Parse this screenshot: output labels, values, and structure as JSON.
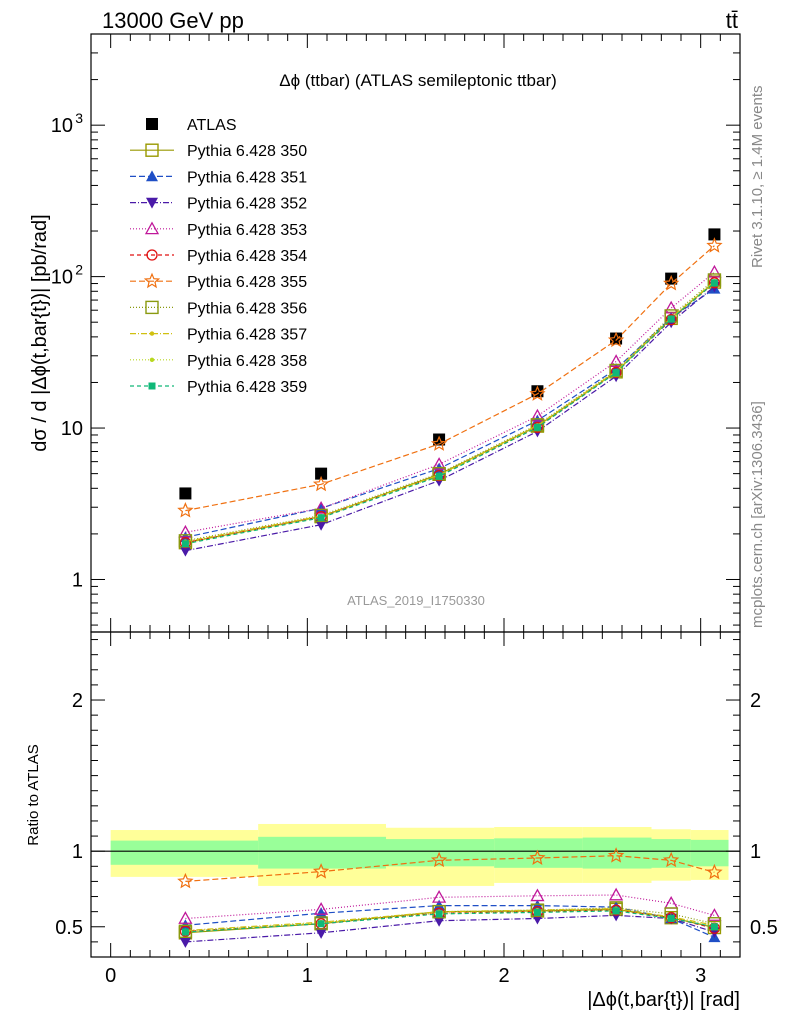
{
  "header": {
    "beam": "13000 GeV pp",
    "process": "tt̄"
  },
  "side_labels": {
    "rivet": "Rivet 3.1.10, ≥ 1.4M events",
    "mcplots": "mcplots.cern.ch [arXiv:1306.3436]"
  },
  "chart_data": [
    {
      "type": "scatter",
      "panel": "main",
      "title": "Δϕ (ttbar) (ATLAS semileptonic ttbar)",
      "ylabel": "dσ / d |Δϕ(t,bar{t})| [pb/rad]",
      "yscale": "log",
      "ylim": [
        0.45,
        4000
      ],
      "xlim": [
        -0.1,
        3.2
      ],
      "y_tick_labels": [
        "1",
        "10",
        "10²",
        "10³"
      ],
      "watermark": "ATLAS_2019_I1750330",
      "legend_position": "top-left",
      "x": [
        0.38,
        1.07,
        1.67,
        2.17,
        2.57,
        2.85,
        3.07
      ],
      "series": [
        {
          "name": "ATLAS",
          "color": "#000000",
          "marker": "square-filled",
          "dash": "none",
          "values": [
            3.7,
            5.0,
            8.4,
            17.5,
            39,
            97,
            190
          ]
        },
        {
          "name": "Pythia 6.428 350",
          "color": "#999900",
          "marker": "square-open",
          "dash": "solid",
          "values": [
            1.75,
            2.6,
            4.95,
            10.3,
            23.5,
            53,
            92
          ]
        },
        {
          "name": "Pythia 6.428 351",
          "color": "#1f4fc6",
          "marker": "triangle-up-filled",
          "dash": "6,3",
          "values": [
            1.9,
            2.95,
            5.4,
            11.2,
            24.5,
            53.5,
            83
          ]
        },
        {
          "name": "Pythia 6.428 352",
          "color": "#4a1aa8",
          "marker": "triangle-down-filled",
          "dash": "6,2,1,2",
          "values": [
            1.55,
            2.3,
            4.5,
            9.5,
            22,
            50,
            86
          ]
        },
        {
          "name": "Pythia 6.428 353",
          "color": "#c0189a",
          "marker": "triangle-up-open",
          "dash": "1,2",
          "values": [
            2.05,
            2.95,
            5.75,
            12.0,
            27.5,
            62,
            107
          ]
        },
        {
          "name": "Pythia 6.428 354",
          "color": "#e01010",
          "marker": "circle-open",
          "dash": "4,3",
          "values": [
            1.75,
            2.6,
            4.85,
            10.1,
            23.3,
            52,
            91
          ]
        },
        {
          "name": "Pythia 6.428 355",
          "color": "#f07010",
          "marker": "star-open",
          "dash": "6,3",
          "values": [
            2.85,
            4.25,
            7.85,
            16.8,
            38,
            90,
            160
          ]
        },
        {
          "name": "Pythia 6.428 356",
          "color": "#8a9a10",
          "marker": "square-open",
          "dash": "1,2",
          "values": [
            1.8,
            2.65,
            5.0,
            10.5,
            24,
            55,
            95
          ]
        },
        {
          "name": "Pythia 6.428 357",
          "color": "#d0c010",
          "marker": "dot",
          "dash": "6,2,1,2",
          "values": [
            1.78,
            2.62,
            4.9,
            10.4,
            23.7,
            53.5,
            93
          ]
        },
        {
          "name": "Pythia 6.428 358",
          "color": "#b8d820",
          "marker": "dot",
          "dash": "1,2",
          "values": [
            1.74,
            2.58,
            4.85,
            10.2,
            23.4,
            53,
            92
          ]
        },
        {
          "name": "Pythia 6.428 359",
          "color": "#10b878",
          "marker": "square-filled-small",
          "dash": "4,3",
          "values": [
            1.72,
            2.56,
            4.8,
            10.1,
            23.2,
            52.5,
            91
          ]
        }
      ]
    },
    {
      "type": "line",
      "panel": "ratio",
      "xlabel": "|Δϕ(t,bar{t})| [rad]",
      "ylabel": "Ratio to ATLAS",
      "ylim": [
        0.3,
        2.45
      ],
      "xlim": [
        -0.1,
        3.2
      ],
      "x_tick_labels": [
        "0",
        "1",
        "2",
        "3"
      ],
      "y_tick_labels": [
        "0.5",
        "1",
        "2"
      ],
      "reference_line": 1,
      "uncertainty_bands": {
        "x_edges": [
          0.0,
          0.75,
          1.4,
          1.95,
          2.4,
          2.75,
          2.95,
          3.14159
        ],
        "inner": [
          [
            0.91,
            1.07
          ],
          [
            0.885,
            1.095
          ],
          [
            0.9,
            1.08
          ],
          [
            0.89,
            1.085
          ],
          [
            0.885,
            1.09
          ],
          [
            0.89,
            1.08
          ],
          [
            0.9,
            1.075
          ]
        ],
        "outer": [
          [
            0.83,
            1.14
          ],
          [
            0.77,
            1.18
          ],
          [
            0.77,
            1.155
          ],
          [
            0.79,
            1.16
          ],
          [
            0.79,
            1.16
          ],
          [
            0.805,
            1.145
          ],
          [
            0.81,
            1.14
          ]
        ],
        "inner_color": "#99ff99",
        "outer_color": "#ffff99"
      },
      "x": [
        0.38,
        1.07,
        1.67,
        2.17,
        2.57,
        2.85,
        3.07
      ],
      "series": [
        {
          "name": "Pythia 6.428 350",
          "values": [
            0.46,
            0.52,
            0.6,
            0.605,
            0.615,
            0.56,
            0.495
          ]
        },
        {
          "name": "Pythia 6.428 351",
          "values": [
            0.51,
            0.59,
            0.64,
            0.64,
            0.63,
            0.555,
            0.43
          ]
        },
        {
          "name": "Pythia 6.428 352",
          "values": [
            0.4,
            0.46,
            0.54,
            0.555,
            0.575,
            0.555,
            0.465
          ]
        },
        {
          "name": "Pythia 6.428 353",
          "values": [
            0.555,
            0.615,
            0.695,
            0.705,
            0.71,
            0.655,
            0.575
          ]
        },
        {
          "name": "Pythia 6.428 354",
          "values": [
            0.47,
            0.52,
            0.59,
            0.6,
            0.61,
            0.56,
            0.49
          ]
        },
        {
          "name": "Pythia 6.428 355",
          "values": [
            0.8,
            0.865,
            0.94,
            0.955,
            0.97,
            0.94,
            0.86
          ]
        },
        {
          "name": "Pythia 6.428 356",
          "values": [
            0.47,
            0.525,
            0.6,
            0.61,
            0.625,
            0.585,
            0.52
          ]
        },
        {
          "name": "Pythia 6.428 357",
          "values": [
            0.475,
            0.53,
            0.6,
            0.61,
            0.62,
            0.565,
            0.51
          ]
        },
        {
          "name": "Pythia 6.428 358",
          "values": [
            0.47,
            0.525,
            0.59,
            0.6,
            0.61,
            0.56,
            0.5
          ]
        },
        {
          "name": "Pythia 6.428 359",
          "values": [
            0.465,
            0.52,
            0.585,
            0.595,
            0.605,
            0.555,
            0.5
          ]
        }
      ]
    }
  ]
}
